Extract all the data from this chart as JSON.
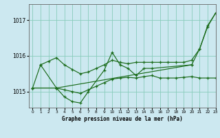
{
  "background_color": "#cce8f0",
  "grid_color": "#88ccbb",
  "line_color": "#1a6b1a",
  "title": "Graphe pression niveau de la mer (hPa)",
  "xlim": [
    -0.5,
    23
  ],
  "ylim": [
    1014.55,
    1017.45
  ],
  "yticks": [
    1015,
    1016,
    1017
  ],
  "xticks": [
    0,
    1,
    2,
    3,
    4,
    5,
    6,
    7,
    8,
    9,
    10,
    11,
    12,
    13,
    14,
    15,
    16,
    17,
    18,
    19,
    20,
    21,
    22,
    23
  ],
  "series": [
    {
      "x": [
        0,
        3,
        4,
        5,
        6,
        7,
        8,
        9,
        10,
        11,
        12,
        13,
        14,
        15,
        16,
        17,
        18,
        19,
        20,
        21,
        22,
        23
      ],
      "y": [
        1015.1,
        1015.1,
        1015.05,
        1015.0,
        1014.95,
        1015.05,
        1015.15,
        1015.25,
        1015.35,
        1015.38,
        1015.4,
        1015.38,
        1015.42,
        1015.45,
        1015.38,
        1015.38,
        1015.38,
        1015.4,
        1015.42,
        1015.38,
        1015.38,
        1015.38
      ]
    },
    {
      "x": [
        0,
        1,
        3,
        4,
        5,
        6,
        7,
        9,
        10,
        11,
        12,
        13,
        14,
        15,
        20
      ],
      "y": [
        1015.1,
        1015.75,
        1015.1,
        1014.85,
        1014.72,
        1014.68,
        1015.0,
        1015.6,
        1016.1,
        1015.75,
        1015.65,
        1015.45,
        1015.65,
        1015.65,
        1015.75
      ]
    },
    {
      "x": [
        0,
        3,
        20,
        21,
        22,
        23
      ],
      "y": [
        1015.1,
        1015.1,
        1015.75,
        1016.2,
        1016.85,
        1017.2
      ]
    },
    {
      "x": [
        1,
        2,
        3,
        4,
        5,
        6,
        7,
        8,
        9,
        10,
        11,
        12,
        13,
        14,
        15,
        16,
        17,
        18,
        19,
        20,
        21,
        22,
        23
      ],
      "y": [
        1015.75,
        1015.85,
        1015.95,
        1015.75,
        1015.62,
        1015.5,
        1015.55,
        1015.65,
        1015.75,
        1015.88,
        1015.82,
        1015.78,
        1015.82,
        1015.82,
        1015.82,
        1015.82,
        1015.82,
        1015.82,
        1015.82,
        1015.88,
        1016.2,
        1016.82,
        1017.2
      ]
    }
  ]
}
